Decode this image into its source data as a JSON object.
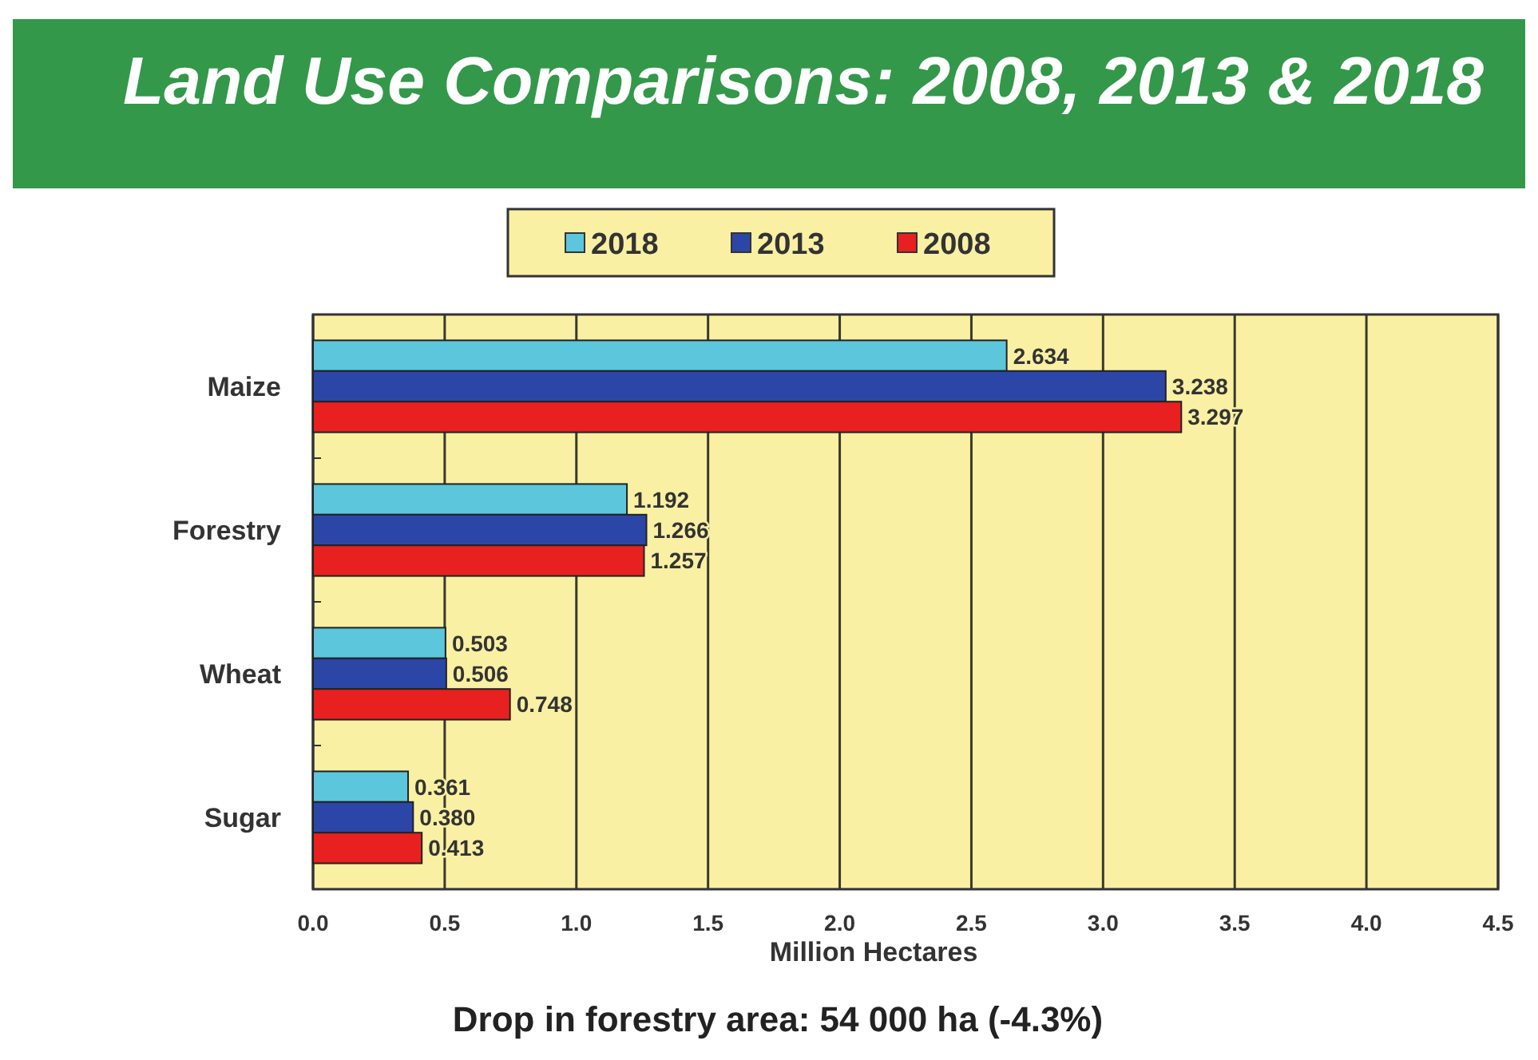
{
  "chart_data": {
    "type": "bar",
    "orientation": "horizontal",
    "title": "Land Use Comparisons: 2008, 2013 & 2018",
    "categories": [
      "Maize",
      "Forestry",
      "Wheat",
      "Sugar"
    ],
    "series": [
      {
        "name": "2018",
        "color": "#5cc6dc",
        "values": [
          2.634,
          1.192,
          0.503,
          0.361
        ],
        "value_labels": [
          "2.634",
          "1.192",
          "0.503",
          "0.361"
        ]
      },
      {
        "name": "2013",
        "color": "#2c46a8",
        "values": [
          3.238,
          1.266,
          0.506,
          0.38
        ],
        "value_labels": [
          "3.238",
          "1.266",
          "0.506",
          "0.380"
        ]
      },
      {
        "name": "2008",
        "color": "#e82020",
        "values": [
          3.297,
          1.257,
          0.748,
          0.413
        ],
        "value_labels": [
          "3.297",
          "1.257",
          "0.748",
          "0.413"
        ]
      }
    ],
    "xlabel": "Million Hectares",
    "xlim": [
      0,
      4.5
    ],
    "xticks": [
      {
        "value": 0,
        "label": "0.0"
      },
      0.5,
      {
        "value": 1,
        "label": "1.0"
      },
      1.5,
      {
        "value": 2,
        "label": "2.0"
      },
      2.5,
      {
        "value": 3,
        "label": "3.0"
      },
      3.5,
      {
        "value": 4,
        "label": "4.0"
      },
      4.5
    ],
    "grid": "x",
    "legend": "top",
    "annotations": [
      "Drop in forestry area: 54 000 ha (-4.3%)"
    ]
  }
}
